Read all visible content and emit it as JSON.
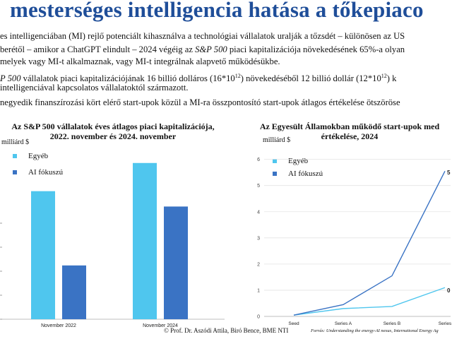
{
  "slide": {
    "title": "mesterséges intelligencia hatása a tőkepiaco",
    "paragraphs": [
      {
        "text": "es intelligenciában (MI) rejlő potenciált kihasználva a technológiai vállalatok uralják a tőzsdét – különösen az US"
      },
      {
        "pre": "berétől – amikor a ChatGPT elindult – 2024 végéig az ",
        "em": "S&P 500",
        "post": " piaci kapitalizációja növekedésének 65%-a olyan"
      },
      {
        "text": "melyek vagy MI-t alkalmaznak, vagy MI-t integrálnak alapvető működésükbe."
      },
      {
        "pre": "P 500",
        "mid1": " vállalatok piaci kapitalizációjának 16 billió dolláros (16*10",
        "sup1": "12",
        "mid2": ") növekedéséből 12 billió dollár (12*10",
        "sup2": "12",
        "post": ") k"
      },
      {
        "text": "intelligenciával kapcsolatos vállalatoktól származott."
      },
      {
        "text": "negyedik finanszírozási kört elérő start-upok közül a MI-ra összpontosító start-upok átlagos értékelése ötszöröse"
      }
    ],
    "footer": "© Prof. Dr. Aszódi Attila, Biró Bence, BME NTI",
    "source": "Forrás: Understanding the energy-AI nexus, International Energy Ag"
  },
  "colors": {
    "egyeb": "#4fc6ee",
    "ai": "#3a73c4",
    "title": "#1f4e99",
    "axis": "#bfbfbf"
  },
  "chart_data": [
    {
      "type": "bar",
      "title": "Az S&P 500 vállalatok éves átlagos piaci kapitalizációja,\n2022. november és 2024. november",
      "ylabel": "milliárd $",
      "categories": [
        "November 2022",
        "November 2024"
      ],
      "series": [
        {
          "name": "Egyéb",
          "values": [
            50,
            61
          ]
        },
        {
          "name": "AI fókuszú",
          "values": [
            21,
            44
          ]
        }
      ],
      "ylim": [
        0,
        75
      ],
      "grid": false,
      "legend": "top-left"
    },
    {
      "type": "line",
      "title": "Az Egyesült Államokban működő start-upok med\nértékelése, 2024",
      "ylabel": "milliárd $",
      "categories": [
        "Seed",
        "Series A",
        "Series B",
        "Series"
      ],
      "yticks": [
        "0",
        "1",
        "2",
        "3",
        "4",
        "5",
        "6"
      ],
      "series": [
        {
          "name": "Egyéb",
          "values": [
            0.05,
            0.3,
            0.38,
            1.1
          ]
        },
        {
          "name": "AI fókuszú",
          "values": [
            0.05,
            0.45,
            1.55,
            5.55
          ]
        }
      ],
      "end_labels": [
        "5",
        "0"
      ],
      "ylim": [
        0,
        6.8
      ],
      "grid": true,
      "legend": "top-left"
    }
  ]
}
